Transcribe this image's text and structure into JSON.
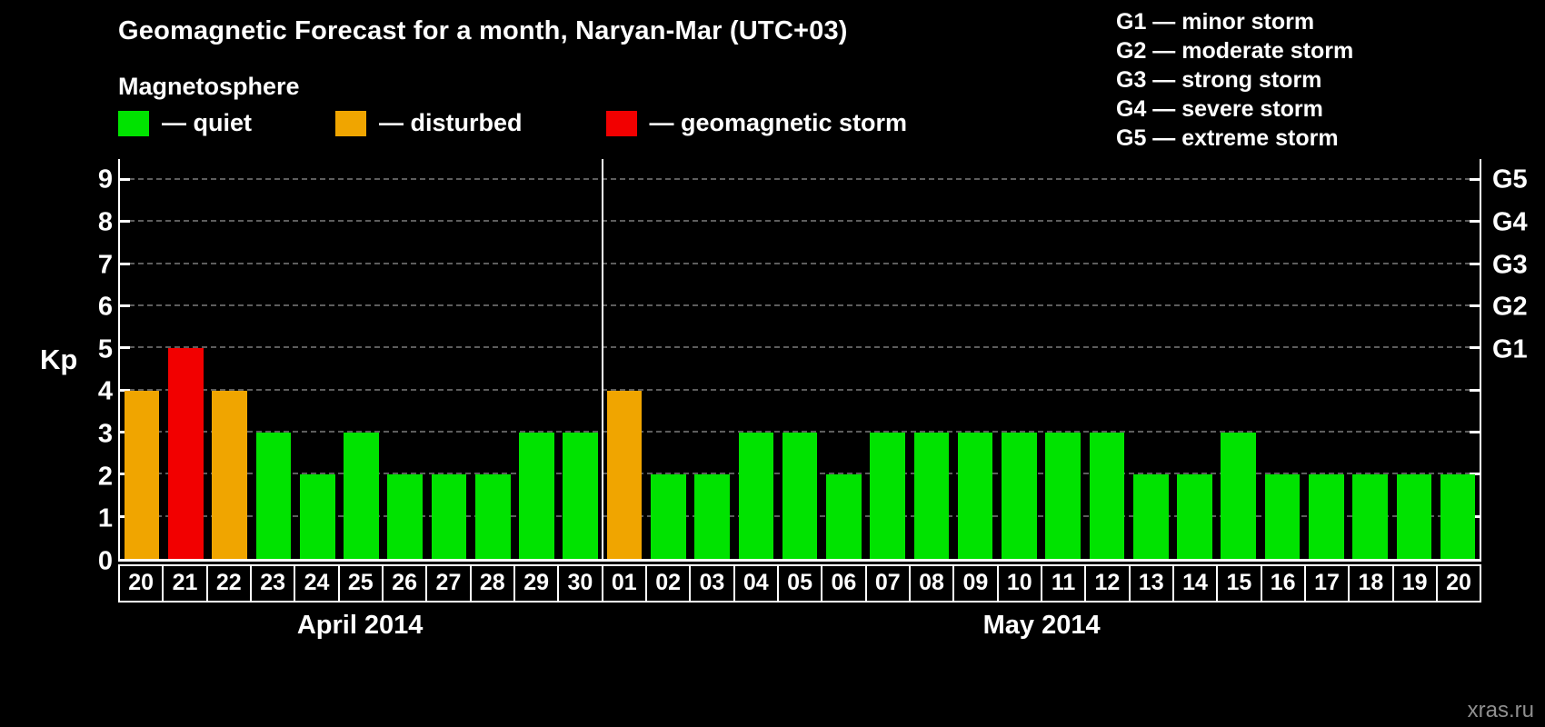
{
  "title": "Geomagnetic Forecast for a month, Naryan-Mar (UTC+03)",
  "subtitle": "Magnetosphere",
  "legend": {
    "items": [
      {
        "label": "— quiet",
        "status": "quiet"
      },
      {
        "label": "— disturbed",
        "status": "disturbed"
      },
      {
        "label": "— geomagnetic storm",
        "status": "storm"
      }
    ]
  },
  "storm_scale": {
    "items": [
      "G1 — minor storm",
      "G2 — moderate storm",
      "G3 — strong storm",
      "G4 — severe storm",
      "G5 — extreme storm"
    ]
  },
  "colors": {
    "quiet": "#00e300",
    "disturbed": "#f0a500",
    "storm": "#f20000",
    "gridline": "#5d5d5d"
  },
  "watermark": "xras.ru",
  "chart_data": {
    "type": "bar",
    "title": "Geomagnetic Forecast for a month, Naryan-Mar (UTC+03)",
    "ylabel": "Kp",
    "xlabel": "",
    "ylim": [
      0,
      9.5
    ],
    "yticks": [
      0,
      1,
      2,
      3,
      4,
      5,
      6,
      7,
      8,
      9
    ],
    "grid": true,
    "legend_position": "top",
    "right_axis_labels": [
      {
        "value": 5,
        "label": "G1"
      },
      {
        "value": 6,
        "label": "G2"
      },
      {
        "value": 7,
        "label": "G3"
      },
      {
        "value": 8,
        "label": "G4"
      },
      {
        "value": 9,
        "label": "G5"
      }
    ],
    "months": [
      {
        "label": "April 2014",
        "days": 11
      },
      {
        "label": "May 2014",
        "days": 20
      }
    ],
    "categories": [
      "20",
      "21",
      "22",
      "23",
      "24",
      "25",
      "26",
      "27",
      "28",
      "29",
      "30",
      "01",
      "02",
      "03",
      "04",
      "05",
      "06",
      "07",
      "08",
      "09",
      "10",
      "11",
      "12",
      "13",
      "14",
      "15",
      "16",
      "17",
      "18",
      "19",
      "20"
    ],
    "values": [
      4,
      5,
      4,
      3,
      2,
      3,
      2,
      2,
      2,
      3,
      3,
      4,
      2,
      2,
      3,
      3,
      2,
      3,
      3,
      3,
      3,
      3,
      3,
      2,
      2,
      3,
      2,
      2,
      2,
      2,
      2
    ],
    "statuses": [
      "disturbed",
      "storm",
      "disturbed",
      "quiet",
      "quiet",
      "quiet",
      "quiet",
      "quiet",
      "quiet",
      "quiet",
      "quiet",
      "disturbed",
      "quiet",
      "quiet",
      "quiet",
      "quiet",
      "quiet",
      "quiet",
      "quiet",
      "quiet",
      "quiet",
      "quiet",
      "quiet",
      "quiet",
      "quiet",
      "quiet",
      "quiet",
      "quiet",
      "quiet",
      "quiet",
      "quiet"
    ]
  }
}
